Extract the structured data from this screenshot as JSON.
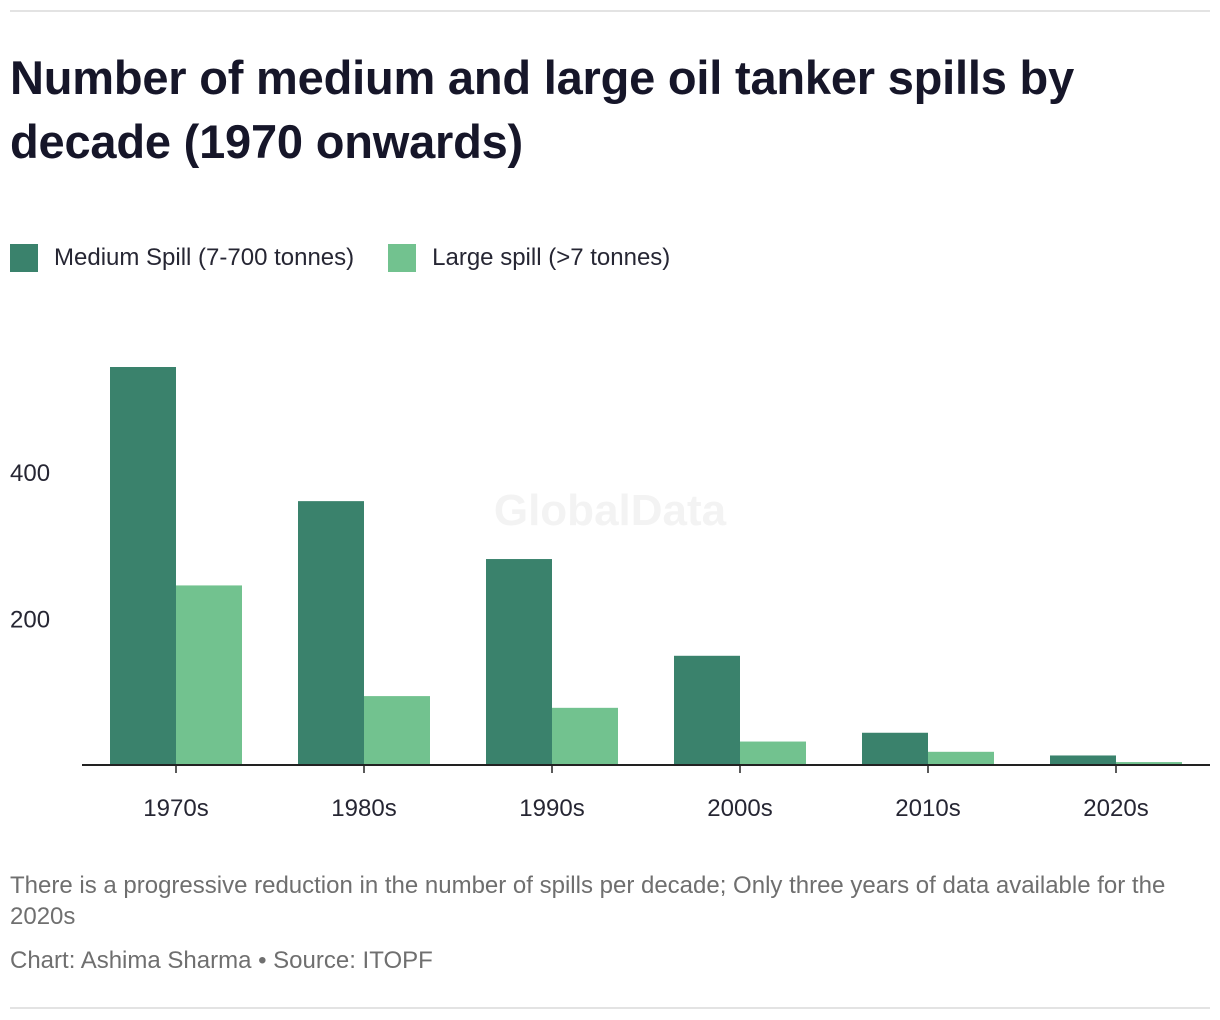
{
  "header": {
    "title": "Number of medium and large oil tanker spills by decade (1970 onwards)"
  },
  "legend": {
    "items": [
      {
        "label": "Medium Spill (7-700 tonnes)",
        "color": "#3a826c"
      },
      {
        "label": "Large spill (>7 tonnes)",
        "color": "#72c28f"
      }
    ]
  },
  "chart_data": {
    "type": "bar",
    "title": "Number of medium and large oil tanker spills by decade (1970 onwards)",
    "xlabel": "",
    "ylabel": "",
    "categories": [
      "1970s",
      "1980s",
      "1990s",
      "2000s",
      "2010s",
      "2020s"
    ],
    "series": [
      {
        "name": "Medium Spill (7-700 tonnes)",
        "color": "#3a826c",
        "values": [
          543,
          360,
          281,
          149,
          44,
          13
        ]
      },
      {
        "name": "Large spill (>7 tonnes)",
        "color": "#72c28f",
        "values": [
          245,
          94,
          78,
          32,
          18,
          4
        ]
      }
    ],
    "yticks": [
      200,
      400
    ],
    "ylim": [
      0,
      543
    ],
    "grid": false,
    "legend_position": "top-left",
    "watermark": "GlobalData"
  },
  "footer": {
    "notes": "There is a progressive reduction in the number of spills per decade; Only three years of data available for the 2020s",
    "credits": "Chart: Ashima Sharma • Source: ITOPF"
  }
}
